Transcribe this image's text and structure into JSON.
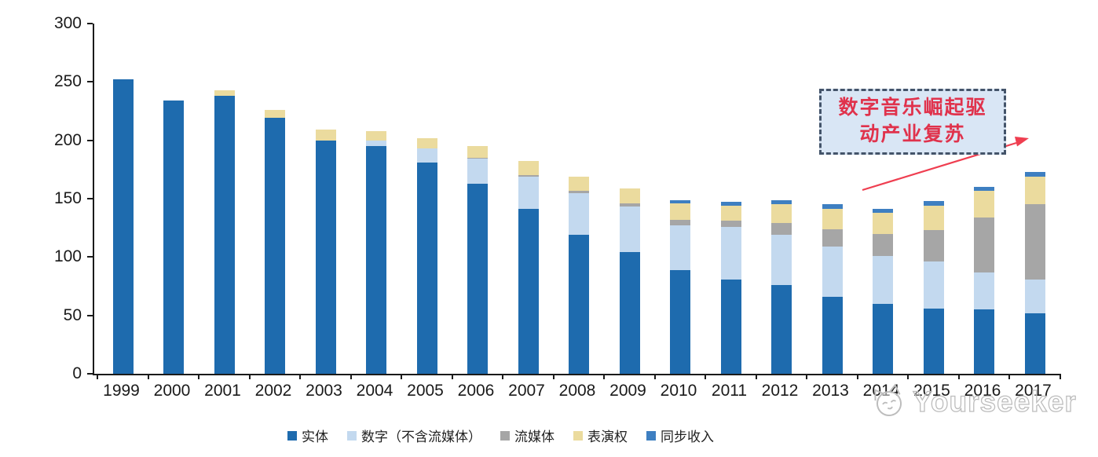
{
  "chart_data": {
    "type": "bar",
    "stacked": true,
    "title": "",
    "xlabel": "",
    "ylabel": "",
    "ylim": [
      0,
      300
    ],
    "yticks": [
      0,
      50,
      100,
      150,
      200,
      250,
      300
    ],
    "grid": false,
    "legend_position": "bottom",
    "categories": [
      "1999",
      "2000",
      "2001",
      "2002",
      "2003",
      "2004",
      "2005",
      "2006",
      "2007",
      "2008",
      "2009",
      "2010",
      "2011",
      "2012",
      "2013",
      "2014",
      "2015",
      "2016",
      "2017"
    ],
    "series": [
      {
        "key": "physical",
        "name": "实体",
        "color": "#1e6bae",
        "values": [
          252,
          234,
          238,
          219,
          200,
          195,
          181,
          163,
          141,
          119,
          104,
          89,
          81,
          76,
          66,
          60,
          56,
          55,
          52
        ]
      },
      {
        "key": "digital-ex-streaming",
        "name": "数字（不含流媒体）",
        "color": "#c3d9ef",
        "values": [
          0,
          0,
          0,
          0,
          0,
          5,
          12,
          21,
          28,
          36,
          39,
          38,
          45,
          43,
          43,
          41,
          40,
          32,
          29
        ]
      },
      {
        "key": "streaming",
        "name": "流媒体",
        "color": "#a6a6a6",
        "values": [
          0,
          0,
          0,
          0,
          0,
          0,
          0,
          1,
          1,
          2,
          3,
          5,
          5,
          10,
          15,
          19,
          27,
          47,
          64
        ]
      },
      {
        "key": "performance-rights",
        "name": "表演权",
        "color": "#ebdb9e",
        "values": [
          0,
          0,
          5,
          7,
          9,
          8,
          9,
          10,
          12,
          12,
          13,
          14,
          13,
          16,
          17,
          18,
          21,
          23,
          24
        ]
      },
      {
        "key": "sync-revenue",
        "name": "同步收入",
        "color": "#3e7fc1",
        "values": [
          0,
          0,
          0,
          0,
          0,
          0,
          0,
          0,
          0,
          0,
          0,
          3,
          3,
          4,
          4,
          3,
          4,
          3,
          4
        ]
      }
    ]
  },
  "annotation": {
    "line1": "数字音乐崛起驱",
    "line2": "动产业复苏",
    "box_fill": "#d9e6f5",
    "box_border": "#44546a",
    "text_color": "#e0324c",
    "arrow_color": "#ef3e50"
  },
  "watermark": {
    "text": "Yourseeker"
  },
  "colors": {
    "axis": "#1a1a1a",
    "background": "#ffffff"
  }
}
